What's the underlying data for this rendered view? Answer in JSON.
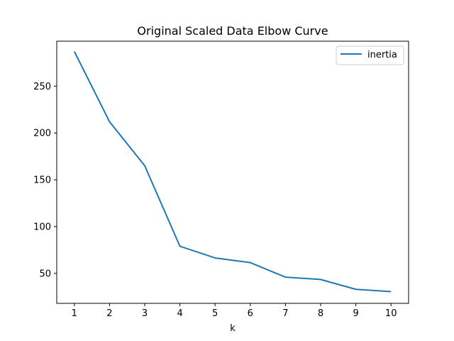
{
  "chart_data": {
    "type": "line",
    "title": "Original Scaled Data Elbow Curve",
    "xlabel": "k",
    "ylabel": "",
    "x": [
      1,
      2,
      3,
      4,
      5,
      6,
      7,
      8,
      9,
      10
    ],
    "series": [
      {
        "name": "inertia",
        "values": [
          287,
          212,
          165,
          79,
          66.5,
          61.5,
          46,
          43.5,
          33,
          30.5
        ],
        "color": "#1f77b4"
      }
    ],
    "xlim": [
      0.5,
      10.5
    ],
    "ylim": [
      18,
      298
    ],
    "xticks": [
      1,
      2,
      3,
      4,
      5,
      6,
      7,
      8,
      9,
      10
    ],
    "yticks": [
      50,
      100,
      150,
      200,
      250
    ],
    "grid": false,
    "legend": "top-right"
  }
}
